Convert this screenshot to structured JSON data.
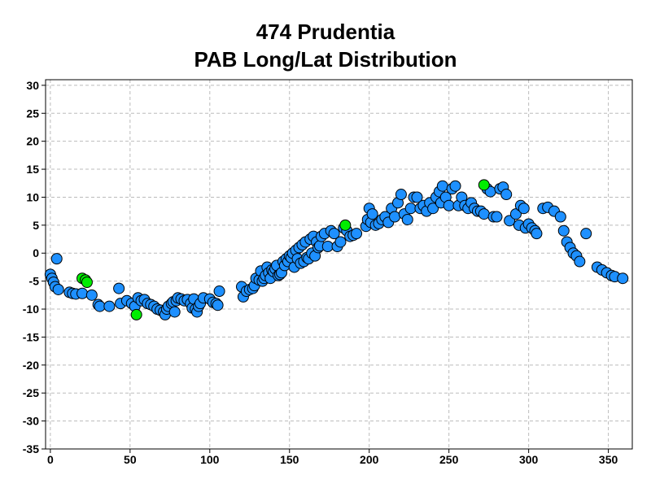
{
  "chart_data": {
    "type": "scatter",
    "title": "474 Prudentia",
    "subtitle": "PAB Long/Lat Distribution",
    "xlabel": "",
    "ylabel": "",
    "xlim": [
      -3,
      365
    ],
    "ylim": [
      -35,
      31
    ],
    "xticks": [
      0,
      50,
      100,
      150,
      200,
      250,
      300,
      350
    ],
    "yticks": [
      -35,
      -30,
      -25,
      -20,
      -15,
      -10,
      -5,
      0,
      5,
      10,
      15,
      20,
      25,
      30
    ],
    "grid": true,
    "legend": "none",
    "colors": {
      "series_blue": "#1e90ff",
      "series_green": "#00ee00",
      "outline": "#000000",
      "grid": "#bbbbbb"
    },
    "series": [
      {
        "color": "#1e90ff",
        "points": [
          [
            0,
            -3.8
          ],
          [
            1,
            -4.5
          ],
          [
            2,
            -5.2
          ],
          [
            3,
            -6
          ],
          [
            4,
            -1
          ],
          [
            5,
            -6.5
          ],
          [
            12,
            -7
          ],
          [
            14,
            -7.2
          ],
          [
            16,
            -7.3
          ],
          [
            20,
            -7.2
          ],
          [
            26,
            -7.5
          ],
          [
            30,
            -9.2
          ],
          [
            31,
            -9.5
          ],
          [
            37,
            -9.5
          ],
          [
            43,
            -6.3
          ],
          [
            44,
            -9
          ],
          [
            48,
            -8.5
          ],
          [
            51,
            -9
          ],
          [
            53,
            -9.5
          ],
          [
            55,
            -8
          ],
          [
            57,
            -8.5
          ],
          [
            59,
            -8.3
          ],
          [
            61,
            -9
          ],
          [
            63,
            -9.2
          ],
          [
            65,
            -9.5
          ],
          [
            67,
            -10
          ],
          [
            69,
            -10.2
          ],
          [
            71,
            -10.5
          ],
          [
            72,
            -11
          ],
          [
            73,
            -10
          ],
          [
            74,
            -9.5
          ],
          [
            76,
            -9
          ],
          [
            77,
            -8.7
          ],
          [
            78,
            -10.5
          ],
          [
            79,
            -8.5
          ],
          [
            80,
            -8
          ],
          [
            82,
            -8.2
          ],
          [
            84,
            -8.5
          ],
          [
            86,
            -8.3
          ],
          [
            88,
            -9
          ],
          [
            89,
            -9.8
          ],
          [
            90,
            -8.2
          ],
          [
            91,
            -10
          ],
          [
            92,
            -10.5
          ],
          [
            93,
            -9.5
          ],
          [
            94,
            -9
          ],
          [
            96,
            -8
          ],
          [
            100,
            -8.2
          ],
          [
            102,
            -8.8
          ],
          [
            104,
            -9
          ],
          [
            105,
            -9.3
          ],
          [
            106,
            -6.8
          ],
          [
            120,
            -6
          ],
          [
            121,
            -7.8
          ],
          [
            123,
            -6.8
          ],
          [
            125,
            -6.5
          ],
          [
            127,
            -6.3
          ],
          [
            128,
            -5.8
          ],
          [
            129,
            -4.5
          ],
          [
            131,
            -4.8
          ],
          [
            132,
            -3.2
          ],
          [
            133,
            -5
          ],
          [
            134,
            -4.5
          ],
          [
            135,
            -4
          ],
          [
            136,
            -2.5
          ],
          [
            137,
            -3.5
          ],
          [
            138,
            -4.5
          ],
          [
            139,
            -3
          ],
          [
            140,
            -3.3
          ],
          [
            141,
            -2.8
          ],
          [
            142,
            -2.2
          ],
          [
            143,
            -4
          ],
          [
            144,
            -3.8
          ],
          [
            145,
            -3.5
          ],
          [
            146,
            -1.5
          ],
          [
            147,
            -2.2
          ],
          [
            148,
            -1
          ],
          [
            149,
            -1.5
          ],
          [
            150,
            -0.5
          ],
          [
            151,
            -0.8
          ],
          [
            152,
            0
          ],
          [
            153,
            -2.5
          ],
          [
            154,
            0.5
          ],
          [
            155,
            -1
          ],
          [
            156,
            1
          ],
          [
            157,
            -1.8
          ],
          [
            158,
            1.5
          ],
          [
            159,
            -1.5
          ],
          [
            160,
            2
          ],
          [
            161,
            -0.8
          ],
          [
            162,
            -1
          ],
          [
            163,
            2.5
          ],
          [
            164,
            0
          ],
          [
            165,
            3
          ],
          [
            166,
            -0.5
          ],
          [
            167,
            2
          ],
          [
            168,
            1
          ],
          [
            169,
            1.3
          ],
          [
            170,
            3
          ],
          [
            172,
            3.5
          ],
          [
            174,
            1.2
          ],
          [
            176,
            4
          ],
          [
            178,
            3.5
          ],
          [
            180,
            1.2
          ],
          [
            182,
            2
          ],
          [
            184,
            4.5
          ],
          [
            186,
            4
          ],
          [
            188,
            3
          ],
          [
            190,
            3.2
          ],
          [
            192,
            3.5
          ],
          [
            198,
            4.8
          ],
          [
            199,
            6
          ],
          [
            200,
            8
          ],
          [
            201,
            5.5
          ],
          [
            202,
            7
          ],
          [
            204,
            5
          ],
          [
            206,
            5.3
          ],
          [
            208,
            6
          ],
          [
            210,
            6.5
          ],
          [
            212,
            5.5
          ],
          [
            214,
            8
          ],
          [
            216,
            6.5
          ],
          [
            218,
            9
          ],
          [
            220,
            10.5
          ],
          [
            222,
            7
          ],
          [
            224,
            6
          ],
          [
            226,
            8
          ],
          [
            228,
            10
          ],
          [
            230,
            10
          ],
          [
            232,
            8
          ],
          [
            234,
            8.5
          ],
          [
            236,
            7.5
          ],
          [
            238,
            9
          ],
          [
            240,
            8
          ],
          [
            242,
            10
          ],
          [
            244,
            11
          ],
          [
            245,
            9
          ],
          [
            246,
            12
          ],
          [
            248,
            10
          ],
          [
            250,
            8.5
          ],
          [
            252,
            11.5
          ],
          [
            254,
            12
          ],
          [
            256,
            8.5
          ],
          [
            258,
            10
          ],
          [
            260,
            8.5
          ],
          [
            262,
            8
          ],
          [
            264,
            9
          ],
          [
            266,
            8
          ],
          [
            268,
            7.5
          ],
          [
            270,
            7.5
          ],
          [
            272,
            7
          ],
          [
            274,
            11.5
          ],
          [
            276,
            11
          ],
          [
            278,
            6.5
          ],
          [
            280,
            6.5
          ],
          [
            282,
            11.5
          ],
          [
            284,
            11.8
          ],
          [
            286,
            10.5
          ],
          [
            288,
            5.8
          ],
          [
            292,
            7
          ],
          [
            294,
            5
          ],
          [
            295,
            8.5
          ],
          [
            297,
            8
          ],
          [
            298,
            4.5
          ],
          [
            300,
            5.2
          ],
          [
            302,
            4.5
          ],
          [
            304,
            4
          ],
          [
            305,
            3.5
          ],
          [
            309,
            8
          ],
          [
            312,
            8.2
          ],
          [
            316,
            7.5
          ],
          [
            320,
            6.5
          ],
          [
            322,
            4
          ],
          [
            324,
            2
          ],
          [
            326,
            1
          ],
          [
            328,
            0
          ],
          [
            330,
            -0.5
          ],
          [
            332,
            -1.5
          ],
          [
            336,
            3.5
          ],
          [
            343,
            -2.5
          ],
          [
            346,
            -3
          ],
          [
            349,
            -3.5
          ],
          [
            352,
            -4
          ],
          [
            354,
            -4.2
          ],
          [
            359,
            -4.5
          ]
        ]
      },
      {
        "color": "#00ee00",
        "points": [
          [
            20,
            -4.5
          ],
          [
            22,
            -4.8
          ],
          [
            23,
            -5.2
          ],
          [
            54,
            -11
          ],
          [
            185,
            5
          ],
          [
            272,
            12.2
          ]
        ]
      }
    ]
  }
}
